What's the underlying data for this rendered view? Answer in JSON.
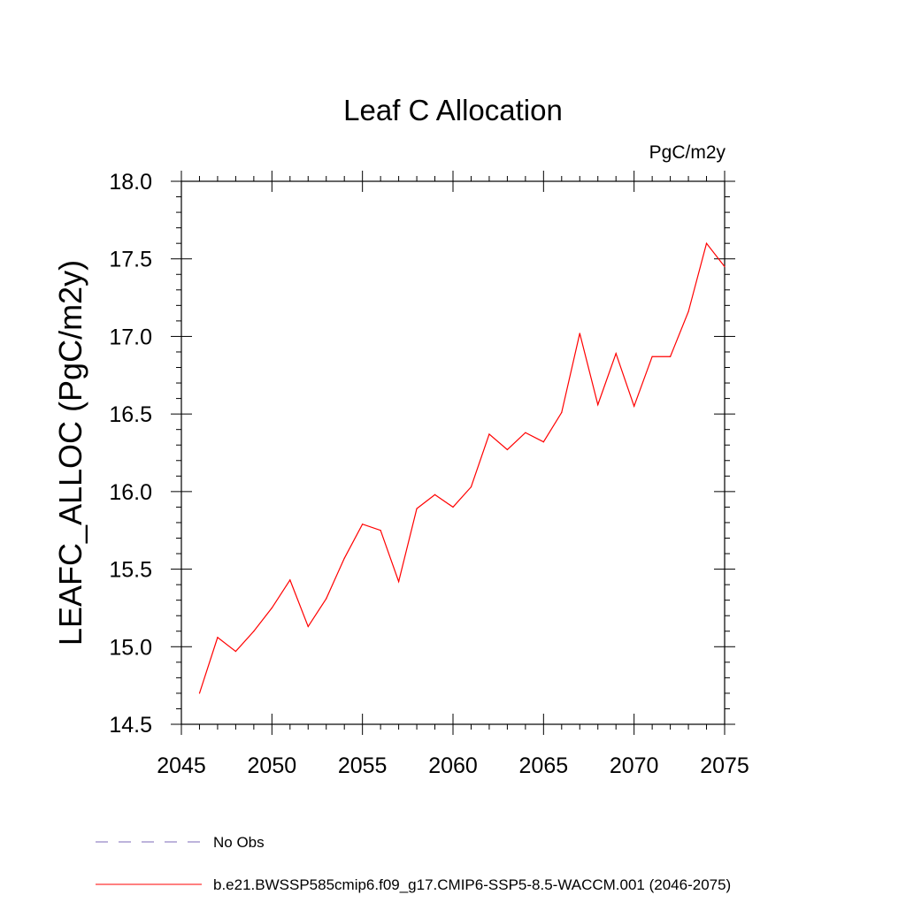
{
  "chart_data": {
    "type": "line",
    "title": "Leaf C Allocation",
    "units_label": "PgC/m2y",
    "xlabel": "",
    "ylabel": "LEAFC_ALLOC  (PgC/m2y)",
    "xlim": [
      2045,
      2075
    ],
    "ylim": [
      14.5,
      18.0
    ],
    "x_major_ticks": [
      2045,
      2050,
      2055,
      2060,
      2065,
      2070,
      2075
    ],
    "x_tick_labels": [
      "2045",
      "2050",
      "2055",
      "2060",
      "2065",
      "2070",
      "2075"
    ],
    "x_minor_step": 1,
    "y_major_ticks": [
      14.5,
      15.0,
      15.5,
      16.0,
      16.5,
      17.0,
      17.5,
      18.0
    ],
    "y_tick_labels": [
      "14.5",
      "15.0",
      "15.5",
      "16.0",
      "16.5",
      "17.0",
      "17.5",
      "18.0"
    ],
    "y_minor_step": 0.1,
    "grid": false,
    "legend_position": "bottom",
    "series": [
      {
        "name": "b.e21.BWSSP585cmip6.f09_g17.CMIP6-SSP5-8.5-WACCM.001 (2046-2075)",
        "color": "#ff0000",
        "style": "solid",
        "x": [
          2046,
          2047,
          2048,
          2049,
          2050,
          2051,
          2052,
          2053,
          2054,
          2055,
          2056,
          2057,
          2058,
          2059,
          2060,
          2061,
          2062,
          2063,
          2064,
          2065,
          2066,
          2067,
          2068,
          2069,
          2070,
          2071,
          2072,
          2073,
          2074,
          2075
        ],
        "y": [
          14.7,
          15.06,
          14.97,
          15.1,
          15.25,
          15.43,
          15.13,
          15.31,
          15.57,
          15.79,
          15.75,
          15.42,
          15.89,
          15.98,
          15.9,
          16.03,
          16.37,
          16.27,
          16.38,
          16.32,
          16.51,
          17.02,
          16.56,
          16.89,
          16.55,
          16.87,
          16.87,
          17.16,
          17.6,
          17.45
        ]
      }
    ],
    "legend": [
      {
        "label": "No Obs",
        "color": "#7b68b8",
        "style": "dashed"
      },
      {
        "label": "b.e21.BWSSP585cmip6.f09_g17.CMIP6-SSP5-8.5-WACCM.001 (2046-2075)",
        "color": "#ff0000",
        "style": "solid"
      }
    ]
  }
}
